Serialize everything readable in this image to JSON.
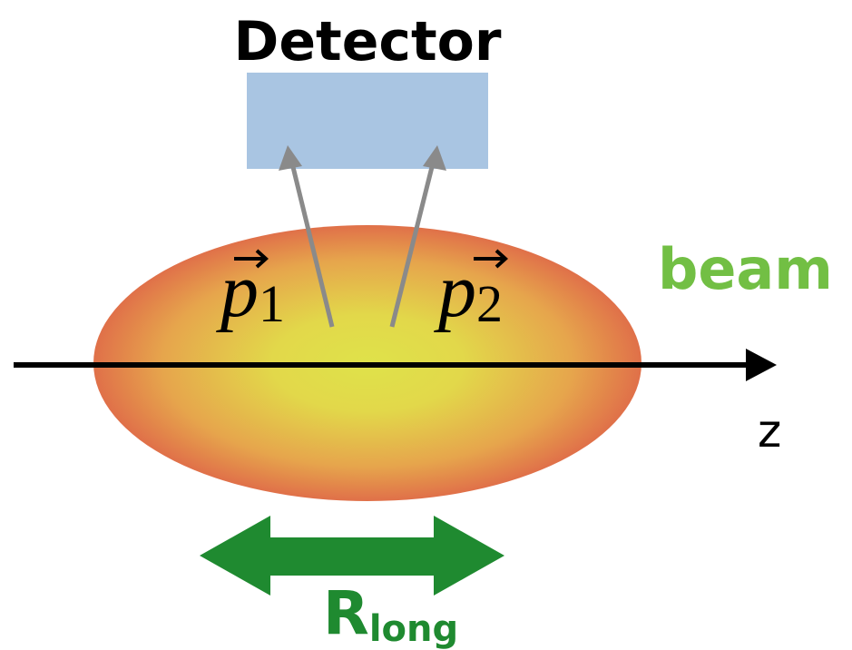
{
  "detector": {
    "label": "Detector"
  },
  "beam": {
    "label": "beam"
  },
  "axis": {
    "label": "z"
  },
  "momenta": [
    {
      "symbol": "p",
      "subscript": "1"
    },
    {
      "symbol": "p",
      "subscript": "2"
    }
  ],
  "size": {
    "symbol": "R",
    "subscript": "long"
  }
}
